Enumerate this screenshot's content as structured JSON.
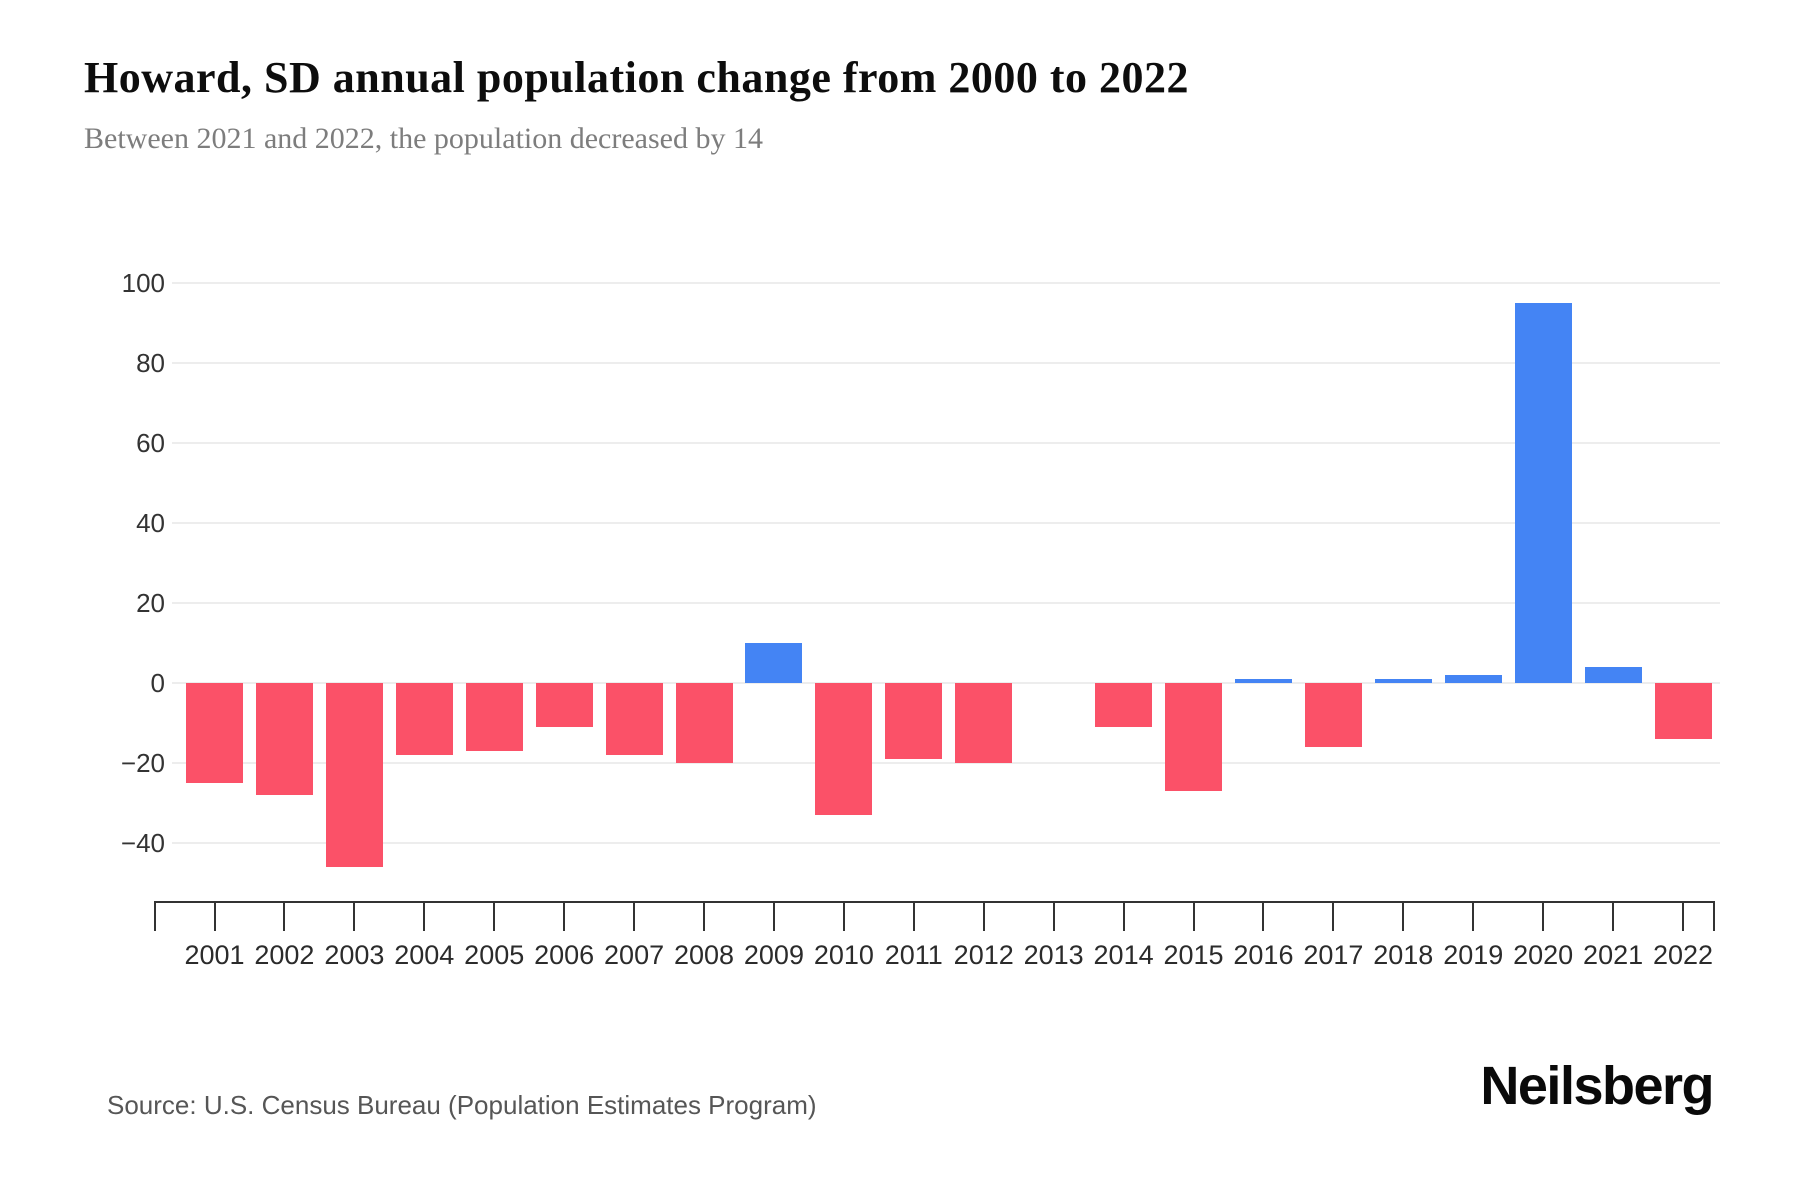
{
  "page": {
    "title": "Howard, SD annual population change from 2000 to 2022",
    "subtitle": "Between 2021 and 2022, the population decreased by 14",
    "source": "Source: U.S. Census Bureau (Population Estimates Program)",
    "brand": "Neilsberg"
  },
  "chart_data": {
    "type": "bar",
    "title": "Howard, SD annual population change from 2000 to 2022",
    "subtitle": "Between 2021 and 2022, the population decreased by 14",
    "categories": [
      "2001",
      "2002",
      "2003",
      "2004",
      "2005",
      "2006",
      "2007",
      "2008",
      "2009",
      "2010",
      "2011",
      "2012",
      "2013",
      "2014",
      "2015",
      "2016",
      "2017",
      "2018",
      "2019",
      "2020",
      "2021",
      "2022"
    ],
    "values": [
      -25,
      -28,
      -46,
      -18,
      -17,
      -11,
      -18,
      -20,
      10,
      -33,
      -19,
      -20,
      0,
      -11,
      -27,
      1,
      -16,
      1,
      2,
      95,
      4,
      -14
    ],
    "xlabel": "",
    "ylabel": "",
    "yticks": [
      100,
      80,
      60,
      40,
      20,
      0,
      -20,
      -40
    ],
    "ytick_labels": [
      "100",
      "80",
      "60",
      "40",
      "20",
      "0",
      "−20",
      "−40"
    ],
    "ylim": [
      -55,
      109
    ],
    "grid": true,
    "legend": false,
    "colors": {
      "positive": "#4484F4",
      "negative": "#FB5168"
    }
  }
}
